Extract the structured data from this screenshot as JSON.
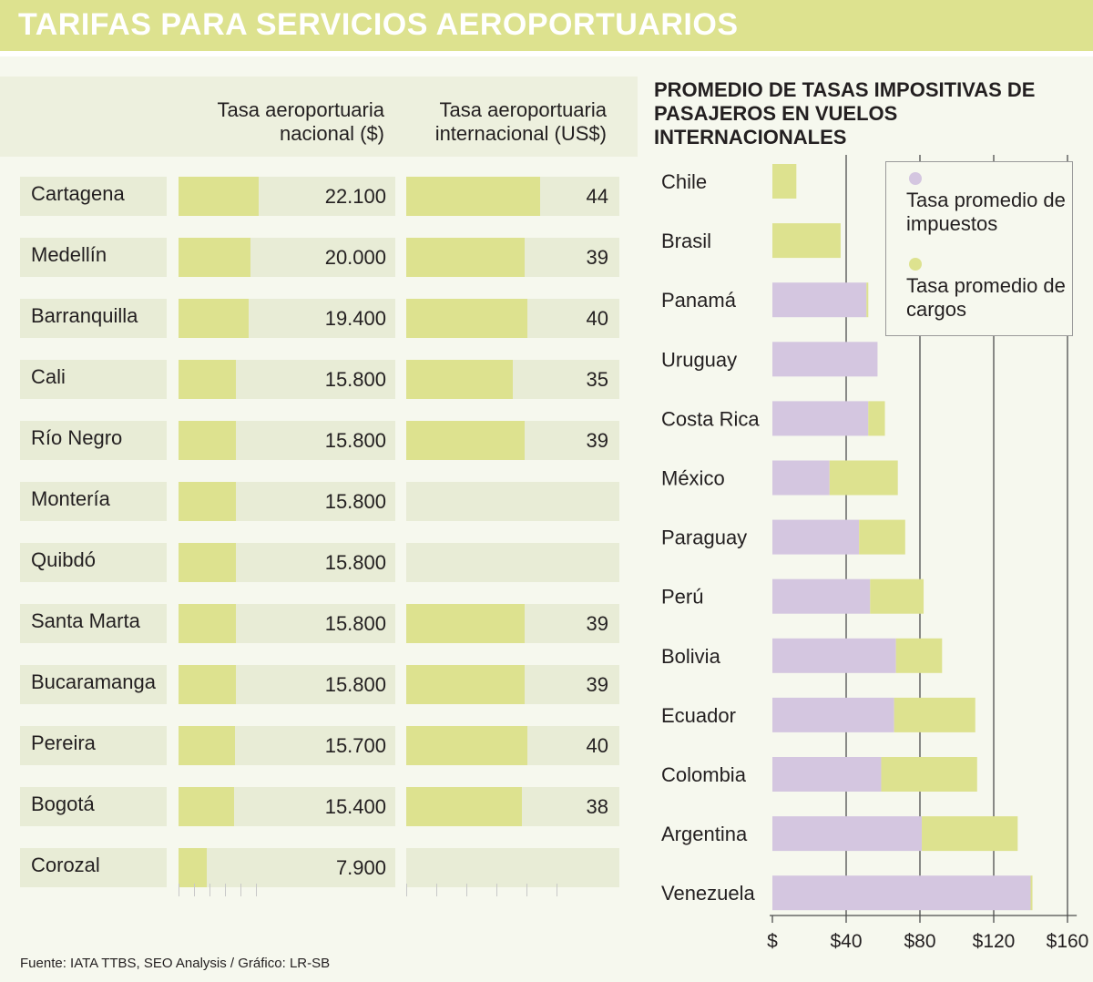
{
  "header": {
    "title": "TARIFAS PARA SERVICIOS AEROPORTUARIOS"
  },
  "table": {
    "col_nacional": "Tasa aeroportuaria nacional ($)",
    "col_internacional": "Tasa aeroportuaria internacional (US$)",
    "rows": [
      {
        "city": "Cartagena",
        "nacional": 22100,
        "nacional_label": "22.100",
        "internacional": 44,
        "internacional_label": "44"
      },
      {
        "city": "Medellín",
        "nacional": 20000,
        "nacional_label": "20.000",
        "internacional": 39,
        "internacional_label": "39"
      },
      {
        "city": "Barranquilla",
        "nacional": 19400,
        "nacional_label": "19.400",
        "internacional": 40,
        "internacional_label": "40"
      },
      {
        "city": "Cali",
        "nacional": 15800,
        "nacional_label": "15.800",
        "internacional": 35,
        "internacional_label": "35"
      },
      {
        "city": "Río Negro",
        "nacional": 15800,
        "nacional_label": "15.800",
        "internacional": 39,
        "internacional_label": "39"
      },
      {
        "city": "Montería",
        "nacional": 15800,
        "nacional_label": "15.800",
        "internacional": null,
        "internacional_label": ""
      },
      {
        "city": "Quibdó",
        "nacional": 15800,
        "nacional_label": "15.800",
        "internacional": null,
        "internacional_label": ""
      },
      {
        "city": "Santa Marta",
        "nacional": 15800,
        "nacional_label": "15.800",
        "internacional": 39,
        "internacional_label": "39"
      },
      {
        "city": "Bucaramanga",
        "nacional": 15800,
        "nacional_label": "15.800",
        "internacional": 39,
        "internacional_label": "39"
      },
      {
        "city": "Pereira",
        "nacional": 15700,
        "nacional_label": "15.700",
        "internacional": 40,
        "internacional_label": "40"
      },
      {
        "city": "Bogotá",
        "nacional": 15400,
        "nacional_label": "15.400",
        "internacional": 38,
        "internacional_label": "38"
      },
      {
        "city": "Corozal",
        "nacional": 7900,
        "nacional_label": "7.900",
        "internacional": null,
        "internacional_label": ""
      }
    ],
    "nacional_max": 60000,
    "internacional_max": 100
  },
  "chart_data": {
    "type": "bar",
    "orientation": "horizontal",
    "stacked": true,
    "title": "PROMEDIO DE TASAS IMPOSITIVAS DE PASAJEROS EN VUELOS INTERNACIONALES",
    "categories": [
      "Chile",
      "Brasil",
      "Panamá",
      "Uruguay",
      "Costa Rica",
      "México",
      "Paraguay",
      "Perú",
      "Bolivia",
      "Ecuador",
      "Colombia",
      "Argentina",
      "Venezuela"
    ],
    "series": [
      {
        "name": "Tasa promedio de impuestos",
        "color": "#d4c6e0",
        "values": [
          0,
          0,
          51,
          57,
          52,
          31,
          47,
          53,
          67,
          66,
          59,
          81,
          140
        ]
      },
      {
        "name": "Tasa promedio de cargos",
        "color": "#dde28f",
        "values": [
          13,
          37,
          1,
          0,
          9,
          37,
          25,
          29,
          25,
          44,
          52,
          52,
          1
        ]
      }
    ],
    "x_ticks": [
      0,
      40,
      80,
      120,
      160
    ],
    "x_tick_labels": [
      "$",
      "$40",
      "$80",
      "$120",
      "$160"
    ],
    "xlim": [
      0,
      165
    ],
    "legend": "top-right"
  },
  "footer": {
    "source": "Fuente: IATA TTBS, SEO Analysis / Gráfico: LR-SB"
  }
}
